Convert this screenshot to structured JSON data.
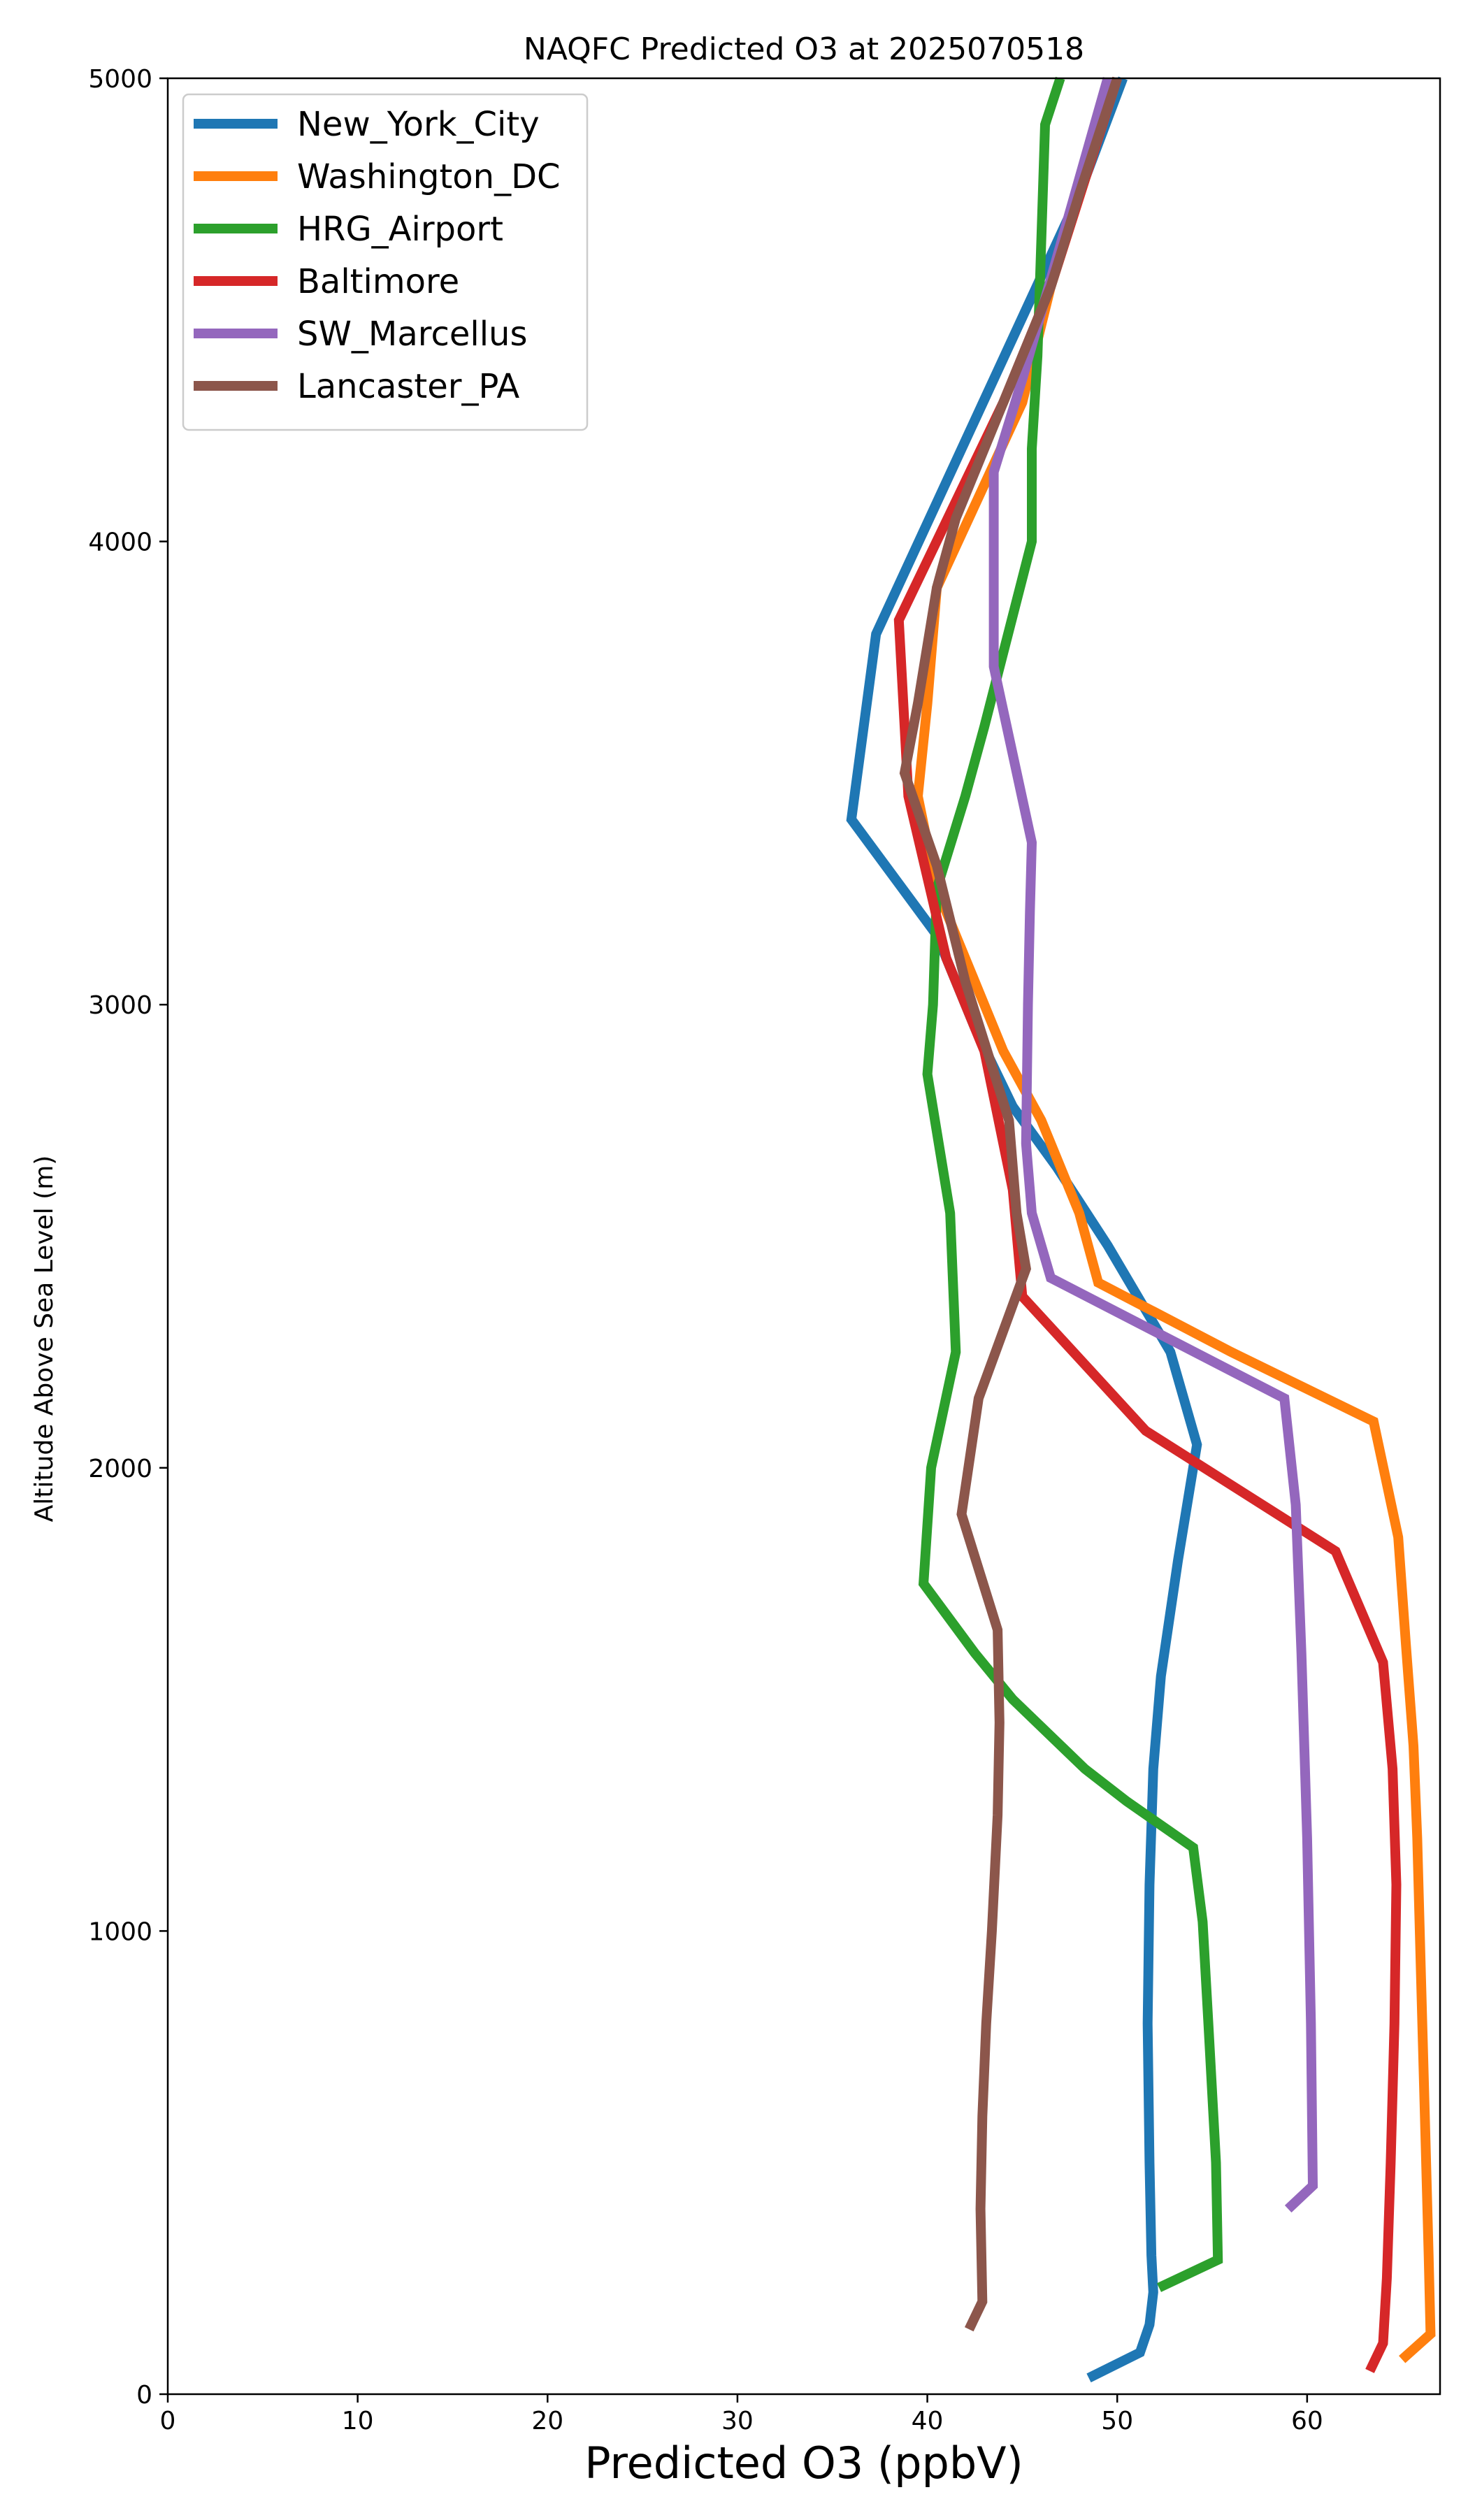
{
  "chart_data": {
    "type": "line",
    "title": "NAQFC Predicted O3 at 2025070518",
    "xlabel": "Predicted O3 (ppbV)",
    "ylabel": "Altitude Above Sea Level (m)",
    "xlim": [
      0,
      67
    ],
    "ylim": [
      0,
      5000
    ],
    "xticks": [
      0,
      10,
      20,
      30,
      40,
      50,
      60
    ],
    "yticks": [
      0,
      1000,
      2000,
      3000,
      4000,
      5000
    ],
    "grid": false,
    "legend_placement": "upper-left",
    "series": [
      {
        "name": "New_York_City",
        "color": "#1f77b4",
        "points": [
          [
            48.5,
            35
          ],
          [
            51.2,
            90
          ],
          [
            51.7,
            150
          ],
          [
            51.9,
            220
          ],
          [
            51.8,
            300
          ],
          [
            51.7,
            500
          ],
          [
            51.6,
            800
          ],
          [
            51.7,
            1100
          ],
          [
            51.9,
            1350
          ],
          [
            52.3,
            1550
          ],
          [
            53.2,
            1800
          ],
          [
            54.2,
            2050
          ],
          [
            52.8,
            2250
          ],
          [
            49.5,
            2480
          ],
          [
            46.8,
            2650
          ],
          [
            44.5,
            2780
          ],
          [
            42.5,
            2950
          ],
          [
            40.5,
            3150
          ],
          [
            36.0,
            3400
          ],
          [
            37.3,
            3800
          ],
          [
            48.0,
            4750
          ],
          [
            50.3,
            5000
          ]
        ]
      },
      {
        "name": "Washington_DC",
        "color": "#ff7f0e",
        "points": [
          [
            65.0,
            75
          ],
          [
            66.5,
            130
          ],
          [
            66.4,
            300
          ],
          [
            66.2,
            600
          ],
          [
            66.0,
            900
          ],
          [
            65.8,
            1200
          ],
          [
            65.6,
            1400
          ],
          [
            65.2,
            1620
          ],
          [
            64.8,
            1850
          ],
          [
            63.5,
            2100
          ],
          [
            56.0,
            2250
          ],
          [
            49.0,
            2400
          ],
          [
            48.0,
            2550
          ],
          [
            46.0,
            2750
          ],
          [
            44.0,
            2900
          ],
          [
            42.5,
            3050
          ],
          [
            40.5,
            3250
          ],
          [
            39.5,
            3450
          ],
          [
            40.0,
            3650
          ],
          [
            40.5,
            3900
          ],
          [
            45.0,
            4300
          ],
          [
            46.5,
            4550
          ],
          [
            50.0,
            5000
          ]
        ]
      },
      {
        "name": "HRG_Airport",
        "color": "#2ca02c",
        "points": [
          [
            52.2,
            230
          ],
          [
            55.3,
            290
          ],
          [
            55.2,
            500
          ],
          [
            54.8,
            800
          ],
          [
            54.5,
            1020
          ],
          [
            54.0,
            1180
          ],
          [
            50.5,
            1280
          ],
          [
            48.3,
            1350
          ],
          [
            44.5,
            1500
          ],
          [
            42.5,
            1600
          ],
          [
            39.8,
            1750
          ],
          [
            40.2,
            2000
          ],
          [
            41.5,
            2250
          ],
          [
            41.2,
            2550
          ],
          [
            40.0,
            2850
          ],
          [
            40.3,
            3000
          ],
          [
            40.5,
            3250
          ],
          [
            42.0,
            3450
          ],
          [
            43.0,
            3600
          ],
          [
            45.5,
            4000
          ],
          [
            45.5,
            4200
          ],
          [
            45.8,
            4400
          ],
          [
            46.0,
            4650
          ],
          [
            46.2,
            4900
          ],
          [
            47.0,
            5000
          ]
        ]
      },
      {
        "name": "Baltimore",
        "color": "#d62728",
        "points": [
          [
            63.3,
            50
          ],
          [
            64.0,
            110
          ],
          [
            64.2,
            250
          ],
          [
            64.4,
            500
          ],
          [
            64.6,
            800
          ],
          [
            64.7,
            1100
          ],
          [
            64.5,
            1350
          ],
          [
            64.0,
            1580
          ],
          [
            61.5,
            1820
          ],
          [
            51.5,
            2080
          ],
          [
            45.0,
            2370
          ],
          [
            44.5,
            2600
          ],
          [
            43.0,
            2900
          ],
          [
            41.0,
            3100
          ],
          [
            39.0,
            3450
          ],
          [
            38.5,
            3830
          ],
          [
            44.0,
            4300
          ],
          [
            46.5,
            4550
          ],
          [
            50.0,
            5000
          ]
        ]
      },
      {
        "name": "SW_Marcellus",
        "color": "#9467bd",
        "points": [
          [
            59.0,
            400
          ],
          [
            60.3,
            450
          ],
          [
            60.2,
            800
          ],
          [
            60.0,
            1200
          ],
          [
            59.7,
            1600
          ],
          [
            59.4,
            1920
          ],
          [
            58.8,
            2150
          ],
          [
            46.5,
            2410
          ],
          [
            45.5,
            2550
          ],
          [
            45.2,
            2700
          ],
          [
            45.3,
            3000
          ],
          [
            45.4,
            3200
          ],
          [
            45.5,
            3350
          ],
          [
            43.5,
            3730
          ],
          [
            43.5,
            4000
          ],
          [
            43.5,
            4150
          ],
          [
            45.0,
            4350
          ],
          [
            49.5,
            5000
          ]
        ]
      },
      {
        "name": "Lancaster_PA",
        "color": "#8c564b",
        "points": [
          [
            42.2,
            140
          ],
          [
            42.9,
            200
          ],
          [
            42.8,
            400
          ],
          [
            42.9,
            600
          ],
          [
            43.1,
            800
          ],
          [
            43.4,
            1000
          ],
          [
            43.7,
            1250
          ],
          [
            43.8,
            1450
          ],
          [
            43.7,
            1650
          ],
          [
            41.8,
            1900
          ],
          [
            42.7,
            2150
          ],
          [
            45.2,
            2430
          ],
          [
            44.7,
            2550
          ],
          [
            44.3,
            2750
          ],
          [
            42.0,
            3050
          ],
          [
            40.5,
            3300
          ],
          [
            38.8,
            3500
          ],
          [
            39.5,
            3650
          ],
          [
            40.5,
            3900
          ],
          [
            41.5,
            4050
          ],
          [
            44.0,
            4300
          ],
          [
            46.5,
            4550
          ],
          [
            48.0,
            4750
          ],
          [
            50.0,
            5000
          ]
        ]
      }
    ]
  }
}
